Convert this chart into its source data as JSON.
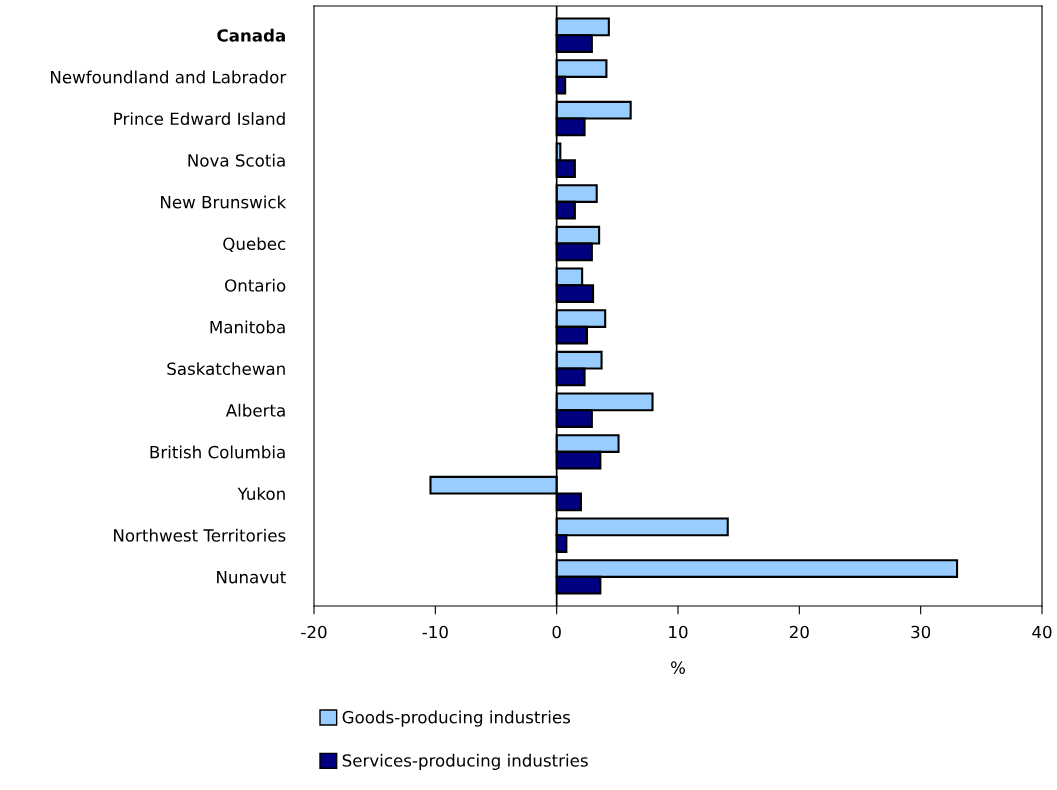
{
  "chart_data": {
    "type": "bar",
    "orientation": "horizontal",
    "xlabel": "%",
    "categories": [
      "Canada",
      "Newfoundland and Labrador",
      "Prince Edward Island",
      "Nova Scotia",
      "New Brunswick",
      "Quebec",
      "Ontario",
      "Manitoba",
      "Saskatchewan",
      "Alberta",
      "British Columbia",
      "Yukon",
      "Northwest Territories",
      "Nunavut"
    ],
    "series": [
      {
        "name": "Goods-producing industries",
        "color": "#99ccff",
        "values": [
          4.3,
          4.1,
          6.1,
          0.3,
          3.3,
          3.5,
          2.1,
          4.0,
          3.7,
          7.9,
          5.1,
          -10.4,
          14.1,
          33.0
        ]
      },
      {
        "name": "Services-producing industries",
        "color": "#000080",
        "values": [
          2.9,
          0.7,
          2.3,
          1.5,
          1.5,
          2.9,
          3.0,
          2.5,
          2.3,
          2.9,
          3.6,
          2.0,
          0.8,
          3.6
        ]
      }
    ],
    "xlim": [
      -20,
      40
    ],
    "xticks": [
      -20,
      -10,
      0,
      10,
      20,
      30,
      40
    ],
    "ref_lines": [
      {
        "axis": "x",
        "value": 0,
        "color": "#000000"
      }
    ],
    "grid": false,
    "legend": "bottom"
  }
}
